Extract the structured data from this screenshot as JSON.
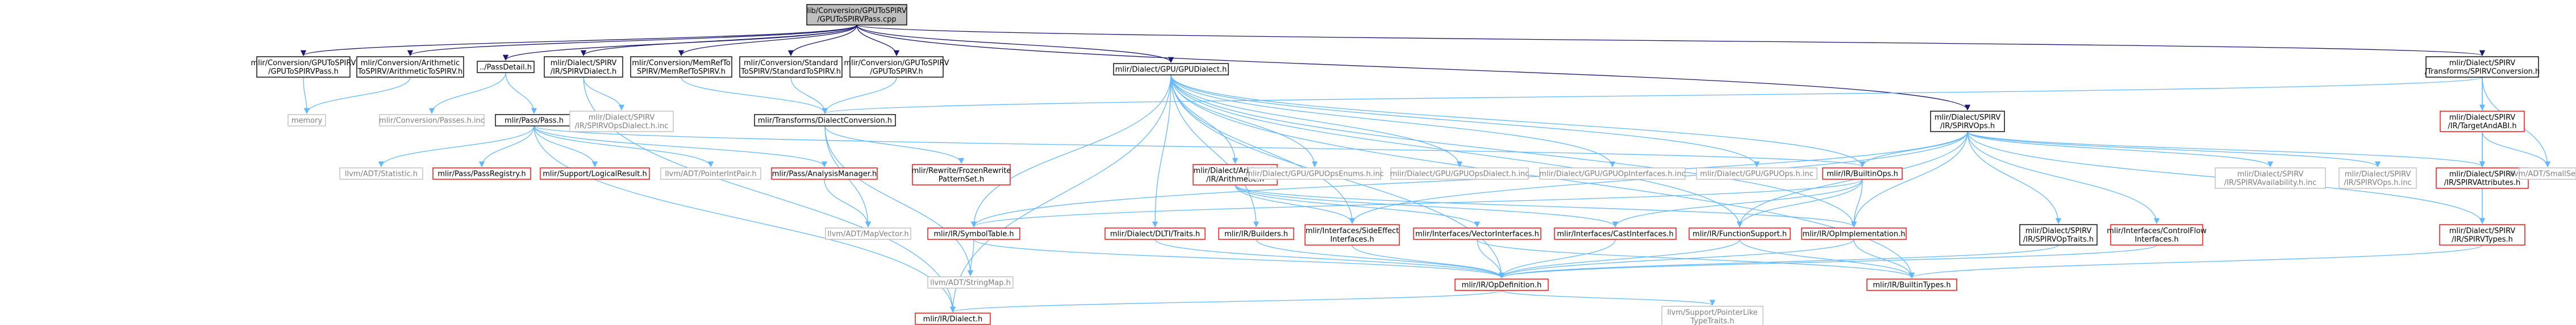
{
  "colors": {
    "edge": "#63b8ff",
    "edge_dark": "#191970",
    "node_text": "#000000",
    "text_grey": "#7f7f7f",
    "link_red": "#ff0000",
    "root_fill": "#bfbfbf",
    "node_fill": "#ffffff",
    "node_border": "#000000",
    "missing_border": "#bfbfbf"
  },
  "nodes": [
    {
      "id": "root",
      "lines": [
        "lib/Conversion/GPUToSPIRV",
        "/GPUToSPIRVPass.cpp"
      ],
      "kind": "root"
    },
    {
      "id": "gpu2spirvpass_h",
      "lines": [
        "mlir/Conversion/GPUToSPIRV",
        "/GPUToSPIRVPass.h"
      ],
      "kind": "normal"
    },
    {
      "id": "arith2spirv",
      "lines": [
        "mlir/Conversion/Arithmetic",
        "ToSPIRV/ArithmeticToSPIRV.h"
      ],
      "kind": "normal"
    },
    {
      "id": "passdetail",
      "lines": [
        "../PassDetail.h"
      ],
      "kind": "normal"
    },
    {
      "id": "spirvdialect",
      "lines": [
        "mlir/Dialect/SPIRV",
        "/IR/SPIRVDialect.h"
      ],
      "kind": "normal"
    },
    {
      "id": "memref2spirv",
      "lines": [
        "mlir/Conversion/MemRefTo",
        "SPIRV/MemRefToSPIRV.h"
      ],
      "kind": "normal"
    },
    {
      "id": "std2spirv",
      "lines": [
        "mlir/Conversion/Standard",
        "ToSPIRV/StandardToSPIRV.h"
      ],
      "kind": "normal"
    },
    {
      "id": "gpu2spirv_h",
      "lines": [
        "mlir/Conversion/GPUToSPIRV",
        "/GPUToSPIRV.h"
      ],
      "kind": "normal"
    },
    {
      "id": "gpudialect",
      "lines": [
        "mlir/Dialect/GPU/GPUDialect.h"
      ],
      "kind": "normal"
    },
    {
      "id": "spirvconversion",
      "lines": [
        "mlir/Dialect/SPIRV",
        "/Transforms/SPIRVConversion.h"
      ],
      "kind": "normal"
    },
    {
      "id": "memory",
      "lines": [
        "memory"
      ],
      "kind": "missing"
    },
    {
      "id": "passes_inc",
      "lines": [
        "mlir/Conversion/Passes.h.inc"
      ],
      "kind": "missing"
    },
    {
      "id": "pass_h",
      "lines": [
        "mlir/Pass/Pass.h"
      ],
      "kind": "normal"
    },
    {
      "id": "spirvopsdialect_inc",
      "lines": [
        "mlir/Dialect/SPIRV",
        "/IR/SPIRVOpsDialect.h.inc"
      ],
      "kind": "missing"
    },
    {
      "id": "dialectconversion",
      "lines": [
        "mlir/Transforms/DialectConversion.h"
      ],
      "kind": "normal"
    },
    {
      "id": "spirvops",
      "lines": [
        "mlir/Dialect/SPIRV",
        "/IR/SPIRVOps.h"
      ],
      "kind": "normal"
    },
    {
      "id": "targetandabi",
      "lines": [
        "mlir/Dialect/SPIRV",
        "/IR/TargetAndABI.h"
      ],
      "kind": "red"
    },
    {
      "id": "statistic",
      "lines": [
        "llvm/ADT/Statistic.h"
      ],
      "kind": "missing"
    },
    {
      "id": "passregistry",
      "lines": [
        "mlir/Pass/PassRegistry.h"
      ],
      "kind": "red"
    },
    {
      "id": "logicalresult",
      "lines": [
        "mlir/Support/LogicalResult.h"
      ],
      "kind": "red"
    },
    {
      "id": "pointerintpair",
      "lines": [
        "llvm/ADT/PointerIntPair.h"
      ],
      "kind": "missing"
    },
    {
      "id": "analysismanager",
      "lines": [
        "mlir/Pass/AnalysisManager.h"
      ],
      "kind": "red"
    },
    {
      "id": "rewritefrozen",
      "lines": [
        "mlir/Rewrite/FrozenRewrite",
        "PatternSet.h"
      ],
      "kind": "red"
    },
    {
      "id": "symboltable",
      "lines": [
        "mlir/IR/SymbolTable.h"
      ],
      "kind": "red"
    },
    {
      "id": "dltitraits",
      "lines": [
        "mlir/Dialect/DLTI/Traits.h"
      ],
      "kind": "red"
    },
    {
      "id": "arithmetic",
      "lines": [
        "mlir/Dialect/Arithmetic",
        "/IR/Arithmetic.h"
      ],
      "kind": "red"
    },
    {
      "id": "builders",
      "lines": [
        "mlir/IR/Builders.h"
      ],
      "kind": "red"
    },
    {
      "id": "gpuopsenums",
      "lines": [
        "mlir/Dialect/GPU/GPUOpsEnums.h.inc"
      ],
      "kind": "missing"
    },
    {
      "id": "gpuopsdialect",
      "lines": [
        "mlir/Dialect/GPU/GPUOpsDialect.h.inc"
      ],
      "kind": "missing"
    },
    {
      "id": "gpuopinterfaces",
      "lines": [
        "mlir/Dialect/GPU/GPUOpInterfaces.h.inc"
      ],
      "kind": "missing"
    },
    {
      "id": "gpuops_inc",
      "lines": [
        "mlir/Dialect/GPU/GPUOps.h.inc"
      ],
      "kind": "missing"
    },
    {
      "id": "builtinops",
      "lines": [
        "mlir/IR/BuiltinOps.h"
      ],
      "kind": "red"
    },
    {
      "id": "sideeffect",
      "lines": [
        "mlir/Interfaces/SideEffect",
        "Interfaces.h"
      ],
      "kind": "red"
    },
    {
      "id": "vectorinterfaces",
      "lines": [
        "mlir/Interfaces/VectorInterfaces.h"
      ],
      "kind": "red"
    },
    {
      "id": "castinterfaces",
      "lines": [
        "mlir/Interfaces/CastInterfaces.h"
      ],
      "kind": "red"
    },
    {
      "id": "functionsupport",
      "lines": [
        "mlir/IR/FunctionSupport.h"
      ],
      "kind": "red"
    },
    {
      "id": "opimplementation",
      "lines": [
        "mlir/IR/OpImplementation.h"
      ],
      "kind": "red"
    },
    {
      "id": "spirvoptraits",
      "lines": [
        "mlir/Dialect/SPIRV",
        "/IR/SPIRVOpTraits.h"
      ],
      "kind": "normal"
    },
    {
      "id": "controlflow",
      "lines": [
        "mlir/Interfaces/ControlFlow",
        "Interfaces.h"
      ],
      "kind": "red"
    },
    {
      "id": "spirvavailability_inc",
      "lines": [
        "mlir/Dialect/SPIRV",
        "/IR/SPIRVAvailability.h.inc"
      ],
      "kind": "missing"
    },
    {
      "id": "spirvops_inc",
      "lines": [
        "mlir/Dialect/SPIRV",
        "/IR/SPIRVOps.h.inc"
      ],
      "kind": "missing"
    },
    {
      "id": "spirvattributes",
      "lines": [
        "mlir/Dialect/SPIRV",
        "/IR/SPIRVAttributes.h"
      ],
      "kind": "red"
    },
    {
      "id": "smallset",
      "lines": [
        "llvm/ADT/SmallSet.h"
      ],
      "kind": "missing"
    },
    {
      "id": "spirvtypes",
      "lines": [
        "mlir/Dialect/SPIRV",
        "/IR/SPIRVTypes.h"
      ],
      "kind": "red"
    },
    {
      "id": "mapvector",
      "lines": [
        "llvm/ADT/MapVector.h"
      ],
      "kind": "missing"
    },
    {
      "id": "stringmap",
      "lines": [
        "llvm/ADT/StringMap.h"
      ],
      "kind": "missing"
    },
    {
      "id": "opdefinition",
      "lines": [
        "mlir/IR/OpDefinition.h"
      ],
      "kind": "red"
    },
    {
      "id": "builtintypes",
      "lines": [
        "mlir/IR/BuiltinTypes.h"
      ],
      "kind": "red"
    },
    {
      "id": "dialect_h",
      "lines": [
        "mlir/IR/Dialect.h"
      ],
      "kind": "red"
    },
    {
      "id": "pointerlike",
      "lines": [
        "llvm/Support/PointerLike",
        "TypeTraits.h"
      ],
      "kind": "missing"
    }
  ],
  "edges": [
    [
      "root",
      "gpu2spirvpass_h"
    ],
    [
      "root",
      "arith2spirv"
    ],
    [
      "root",
      "passdetail"
    ],
    [
      "root",
      "spirvdialect"
    ],
    [
      "root",
      "memref2spirv"
    ],
    [
      "root",
      "std2spirv"
    ],
    [
      "root",
      "gpu2spirv_h"
    ],
    [
      "root",
      "gpudialect"
    ],
    [
      "root",
      "spirvconversion"
    ],
    [
      "root",
      "spirvops"
    ],
    [
      "gpu2spirvpass_h",
      "memory"
    ],
    [
      "arith2spirv",
      "memory"
    ],
    [
      "passdetail",
      "passes_inc"
    ],
    [
      "passdetail",
      "pass_h"
    ],
    [
      "spirvdialect",
      "spirvopsdialect_inc"
    ],
    [
      "spirvdialect",
      "dialect_h"
    ],
    [
      "memref2spirv",
      "dialectconversion"
    ],
    [
      "std2spirv",
      "dialectconversion"
    ],
    [
      "gpu2spirv_h",
      "dialectconversion"
    ],
    [
      "spirvconversion",
      "dialectconversion"
    ],
    [
      "spirvconversion",
      "targetandabi"
    ],
    [
      "spirvconversion",
      "spirvattributes"
    ],
    [
      "spirvconversion",
      "smallset"
    ],
    [
      "spirvconversion",
      "spirvtypes"
    ],
    [
      "pass_h",
      "statistic"
    ],
    [
      "pass_h",
      "passregistry"
    ],
    [
      "pass_h",
      "logicalresult"
    ],
    [
      "pass_h",
      "pointerintpair"
    ],
    [
      "pass_h",
      "analysismanager"
    ],
    [
      "pass_h",
      "dialect_h"
    ],
    [
      "pass_h",
      "builtinops"
    ],
    [
      "analysismanager",
      "mapvector"
    ],
    [
      "dialectconversion",
      "rewritefrozen"
    ],
    [
      "dialectconversion",
      "mapvector"
    ],
    [
      "dialectconversion",
      "stringmap"
    ],
    [
      "gpudialect",
      "symboltable"
    ],
    [
      "gpudialect",
      "dltitraits"
    ],
    [
      "gpudialect",
      "arithmetic"
    ],
    [
      "gpudialect",
      "builders"
    ],
    [
      "gpudialect",
      "gpuopsenums"
    ],
    [
      "gpudialect",
      "gpuopsdialect"
    ],
    [
      "gpudialect",
      "gpuopinterfaces"
    ],
    [
      "gpudialect",
      "gpuops_inc"
    ],
    [
      "gpudialect",
      "builtinops"
    ],
    [
      "gpudialect",
      "sideeffect"
    ],
    [
      "gpudialect",
      "functionsupport"
    ],
    [
      "gpudialect",
      "opimplementation"
    ],
    [
      "gpudialect",
      "opdefinition"
    ],
    [
      "gpudialect",
      "dialect_h"
    ],
    [
      "gpudialect",
      "builtintypes"
    ],
    [
      "arithmetic",
      "sideeffect"
    ],
    [
      "arithmetic",
      "vectorinterfaces"
    ],
    [
      "arithmetic",
      "castinterfaces"
    ],
    [
      "arithmetic",
      "opimplementation"
    ],
    [
      "spirvops",
      "spirvoptraits"
    ],
    [
      "spirvops",
      "controlflow"
    ],
    [
      "spirvops",
      "spirvavailability_inc"
    ],
    [
      "spirvops",
      "spirvops_inc"
    ],
    [
      "spirvops",
      "spirvattributes"
    ],
    [
      "spirvops",
      "spirvtypes"
    ],
    [
      "spirvops",
      "opimplementation"
    ],
    [
      "spirvops",
      "functionsupport"
    ],
    [
      "spirvops",
      "sideeffect"
    ],
    [
      "spirvops",
      "symboltable"
    ],
    [
      "spirvops",
      "builtinops"
    ],
    [
      "targetandabi",
      "spirvattributes"
    ],
    [
      "targetandabi",
      "smallset"
    ],
    [
      "spirvattributes",
      "spirvtypes"
    ],
    [
      "spirvtypes",
      "builtintypes"
    ],
    [
      "builtinops",
      "opimplementation"
    ],
    [
      "builtinops",
      "functionsupport"
    ],
    [
      "builtinops",
      "symboltable"
    ],
    [
      "builtinops",
      "castinterfaces"
    ],
    [
      "symboltable",
      "opdefinition"
    ],
    [
      "symboltable",
      "stringmap"
    ],
    [
      "dltitraits",
      "opdefinition"
    ],
    [
      "builders",
      "opdefinition"
    ],
    [
      "sideeffect",
      "opdefinition"
    ],
    [
      "vectorinterfaces",
      "opdefinition"
    ],
    [
      "vectorinterfaces",
      "builtintypes"
    ],
    [
      "castinterfaces",
      "opdefinition"
    ],
    [
      "functionsupport",
      "opdefinition"
    ],
    [
      "functionsupport",
      "builtintypes"
    ],
    [
      "opimplementation",
      "opdefinition"
    ],
    [
      "opimplementation",
      "builtintypes"
    ],
    [
      "spirvoptraits",
      "opdefinition"
    ],
    [
      "controlflow",
      "opdefinition"
    ],
    [
      "opdefinition",
      "dialect_h"
    ],
    [
      "opdefinition",
      "pointerlike"
    ]
  ]
}
